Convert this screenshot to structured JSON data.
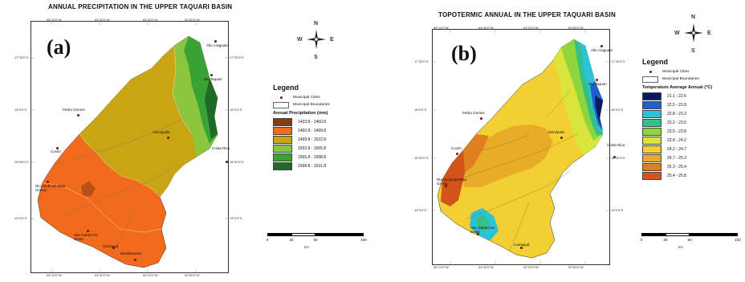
{
  "panel_a": {
    "title": "ANNUAL PRECIPITATION IN THE UPPER TAQUARI BASIN",
    "letter": "(a)",
    "top_coords": [
      "55°10'0\"W",
      "54°40'0\"W",
      "54°20'0\"W",
      "53°50'0\"W"
    ],
    "bottom_coords": [
      "55°10'0\"W",
      "54°40'0\"W",
      "54°20'0\"W",
      "53°50'0\"W"
    ],
    "left_coords": [
      "17°30'0\"S",
      "18°0'0\"S",
      "18°30'0\"S",
      "19°0'0\"S"
    ],
    "right_coords": [
      "17°30'0\"S",
      "18°0'0\"S",
      "18°30'0\"S",
      "19°0'0\"S"
    ],
    "cities": [
      "Alto Araguaia",
      "Alto Taquari",
      "Pedro Gomes",
      "Alcinópolis",
      "Costa Rica",
      "Coxim",
      "Rio Verde de Mato Grosso",
      "São Gabriel do Oeste",
      "Camapuã",
      "Bandeirantes"
    ],
    "north_arrow": {
      "n": "N",
      "s": "S",
      "e": "E",
      "w": "W"
    },
    "legend": {
      "title": "Legend",
      "cities_label": "Municipal Cities",
      "bounds_label": "Municipal Boundaries",
      "class_title": "Annual Precipitation (mm)",
      "classes": [
        {
          "label": "1433.8 - 1460.8",
          "color": "#8a3a10"
        },
        {
          "label": "1460.8 - 1499.8",
          "color": "#f26a1c"
        },
        {
          "label": "1499.8 - 1532.8",
          "color": "#c9a413"
        },
        {
          "label": "1532.8 - 1565.8",
          "color": "#8cc63e"
        },
        {
          "label": "1565.8 - 1598.8",
          "color": "#3aa335"
        },
        {
          "label": "1598.8 - 1631.8",
          "color": "#1d6b27"
        }
      ]
    },
    "scale": {
      "labels": [
        "0",
        "25",
        "50",
        "100"
      ],
      "unit": "km"
    }
  },
  "panel_b": {
    "title": "TOPOTERMIC ANNUAL IN THE UPPER TAQUARI BASIN",
    "letter": "(b)",
    "top_coords": [
      "55°10'0\"W",
      "54°40'0\"W",
      "54°20'0\"W",
      "53°50'0\"W"
    ],
    "bottom_coords": [
      "55°10'0\"W",
      "54°40'0\"W",
      "54°20'0\"W",
      "53°50'0\"W"
    ],
    "left_coords": [
      "17°30'0\"S",
      "18°0'0\"S",
      "18°30'0\"S",
      "19°0'0\"S"
    ],
    "right_coords": [
      "17°30'0\"S",
      "18°0'0\"S",
      "18°30'0\"S",
      "19°0'0\"S"
    ],
    "cities": [
      "Alto Araguaia",
      "Alto Taquari",
      "Pedro Gomes",
      "Alcinópolis",
      "Costa Rica",
      "Coxim",
      "Rio Verde de Mato Grosso",
      "São Gabriel do Oeste",
      "Camapuã"
    ],
    "north_arrow": {
      "n": "N",
      "s": "S",
      "e": "E",
      "w": "W"
    },
    "legend": {
      "title": "Legend",
      "cities_label": "Municipal Cities",
      "bounds_label": "Municipal Boundaries",
      "class_title": "Temperature Average Annual (°C)",
      "classes": [
        {
          "label": "21.1 - 22.5",
          "color": "#0a1a5c"
        },
        {
          "label": "22.5 - 22.8",
          "color": "#1f5fcf"
        },
        {
          "label": "22.8 - 23.2",
          "color": "#2dc3d6"
        },
        {
          "label": "23.2 - 23.5",
          "color": "#35c08a"
        },
        {
          "label": "23.5 - 23.8",
          "color": "#8fd63c"
        },
        {
          "label": "23.8 - 24.2",
          "color": "#dbe43a"
        },
        {
          "label": "24.2 - 24.7",
          "color": "#f2cf32"
        },
        {
          "label": "24.7 - 25.3",
          "color": "#e8ad28"
        },
        {
          "label": "25.3 - 25.4",
          "color": "#e07f22"
        },
        {
          "label": "25.4 - 25.8",
          "color": "#d4531a"
        }
      ]
    },
    "scale": {
      "labels": [
        "0",
        "25",
        "50",
        "100"
      ],
      "unit": "km"
    }
  }
}
